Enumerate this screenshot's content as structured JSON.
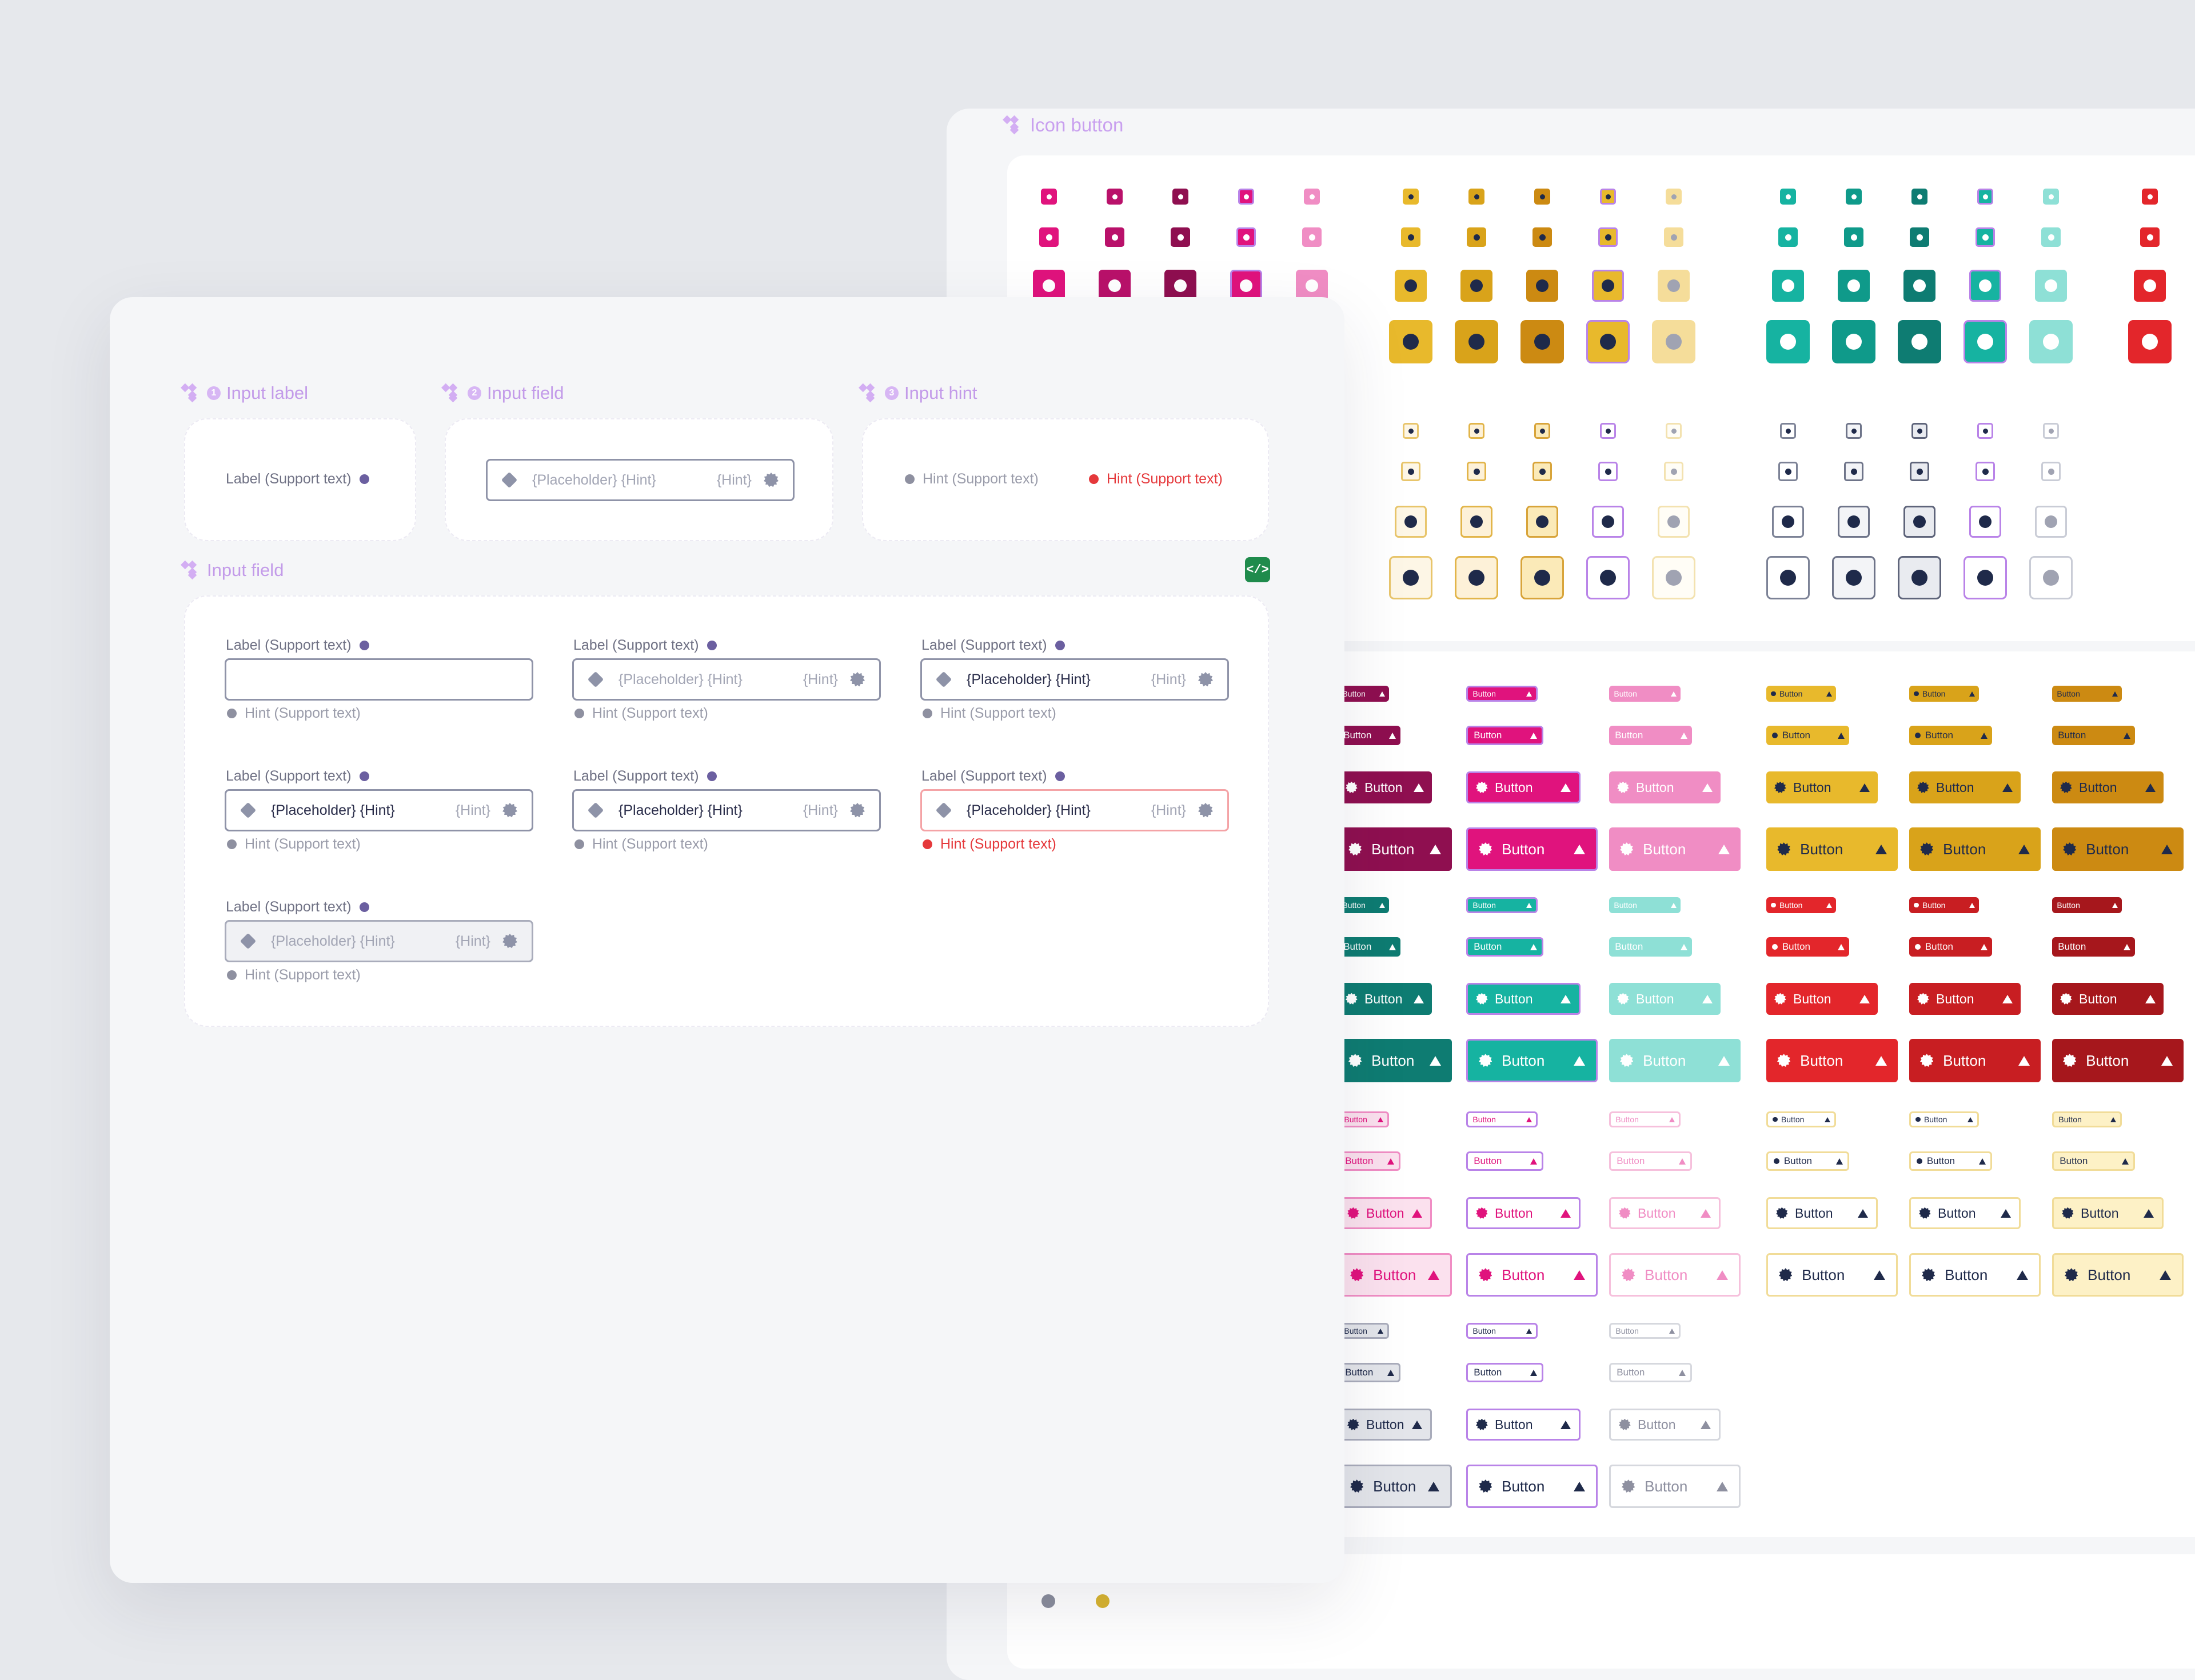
{
  "back_panel": {
    "title": "Icon button",
    "button_label": "Button",
    "icon_button_colors": {
      "pink": [
        "#e0137d",
        "#b9116a",
        "#8f0f50",
        "#e0137d",
        "#f08dc4"
      ],
      "yellow": [
        "#e8b92c",
        "#d9a31a",
        "#cc8a12",
        "#e8b92c",
        "#f5dd9a"
      ],
      "teal": [
        "#16b3a1",
        "#0f9a8a",
        "#0e7c72",
        "#16b3a1",
        "#8ee0d6"
      ],
      "red": [
        "#e3262b"
      ]
    }
  },
  "front_panel": {
    "sections": {
      "input_label": {
        "number": "1",
        "title": "Input label"
      },
      "input_field": {
        "number": "2",
        "title": "Input field"
      },
      "input_hint": {
        "number": "3",
        "title": "Input hint"
      },
      "input_field_main": {
        "title": "Input field"
      }
    },
    "label_text": "Label (Support text)",
    "hint_text": "Hint (Support text)",
    "placeholder_text": "{Placeholder} {Hint}",
    "field_hint_text": "{Hint}",
    "colors": {
      "accent": "#c39be9",
      "error": "#e5383b",
      "label_dot": "#6b5fa0"
    }
  }
}
